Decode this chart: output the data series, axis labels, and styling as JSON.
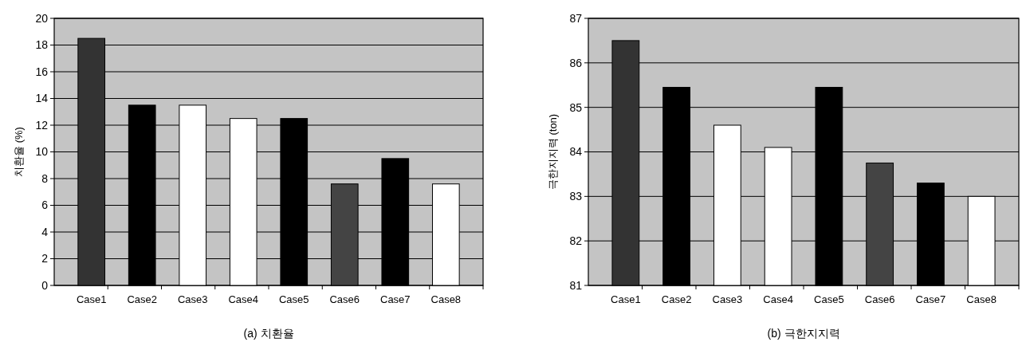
{
  "chart_data": [
    {
      "type": "bar",
      "title": "(a) 치환율",
      "ylabel": "치환율 (%)",
      "categories": [
        "Case1",
        "Case2",
        "Case3",
        "Case4",
        "Case5",
        "Case6",
        "Case7",
        "Case8"
      ],
      "values": [
        18.5,
        13.5,
        13.5,
        12.5,
        12.5,
        7.6,
        9.5,
        7.6
      ],
      "colors": [
        "#333333",
        "#000000",
        "#ffffff",
        "#ffffff",
        "#000000",
        "#444444",
        "#000000",
        "#ffffff"
      ],
      "ylim": [
        0,
        20
      ],
      "yticks": [
        0,
        2,
        4,
        6,
        8,
        10,
        12,
        14,
        16,
        18,
        20
      ],
      "grid": "y"
    },
    {
      "type": "bar",
      "title": "(b) 극한지지력",
      "ylabel": "극한지지력 (ton)",
      "categories": [
        "Case1",
        "Case2",
        "Case3",
        "Case4",
        "Case5",
        "Case6",
        "Case7",
        "Case8"
      ],
      "values": [
        86.5,
        85.45,
        84.6,
        84.1,
        85.45,
        83.75,
        83.3,
        83.0
      ],
      "colors": [
        "#333333",
        "#000000",
        "#ffffff",
        "#ffffff",
        "#000000",
        "#444444",
        "#000000",
        "#ffffff"
      ],
      "ylim": [
        81,
        87
      ],
      "yticks": [
        81,
        82,
        83,
        84,
        85,
        86,
        87
      ],
      "grid": "y"
    }
  ]
}
